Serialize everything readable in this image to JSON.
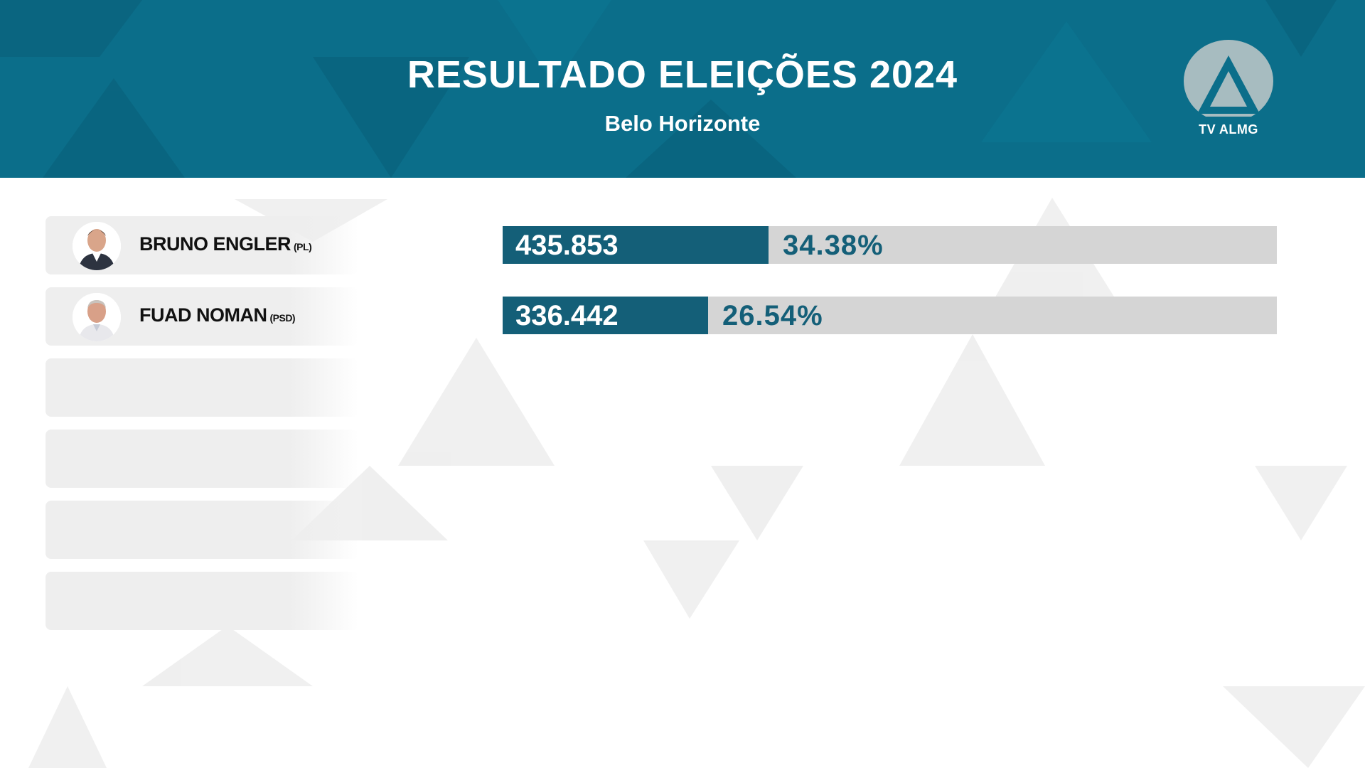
{
  "header": {
    "title": "RESULTADO ELEIÇÕES 2024",
    "subtitle": "Belo Horizonte",
    "logo_text": "TV ALMG",
    "logo_icon": "tv-almg-logo-icon"
  },
  "colors": {
    "header_bg": "#0b6e8a",
    "bar_fill": "#145f78",
    "bar_track": "#d5d5d5",
    "card_bg": "#eeeeee",
    "percent_text": "#145f78"
  },
  "candidates": [
    {
      "name": "BRUNO ENGLER",
      "party": "(PL)",
      "votes": "435.853",
      "percent": "34.38%",
      "share": 0.3438,
      "avatar_icon": "candidate-photo"
    },
    {
      "name": "FUAD NOMAN",
      "party": "(PSD)",
      "votes": "336.442",
      "percent": "26.54%",
      "share": 0.2654,
      "avatar_icon": "candidate-photo"
    }
  ],
  "empty_slots": 4,
  "chart_data": {
    "type": "bar",
    "orientation": "horizontal",
    "title": "RESULTADO ELEIÇÕES 2024",
    "subtitle": "Belo Horizonte",
    "categories": [
      "BRUNO ENGLER (PL)",
      "FUAD NOMAN (PSD)"
    ],
    "values": [
      435853,
      336442
    ],
    "percentages": [
      34.38,
      26.54
    ],
    "value_labels": [
      "435.853",
      "336.442"
    ],
    "percent_labels": [
      "34.38%",
      "26.54%"
    ],
    "xlim": [
      0,
      100
    ],
    "grid": false,
    "legend": "none"
  }
}
